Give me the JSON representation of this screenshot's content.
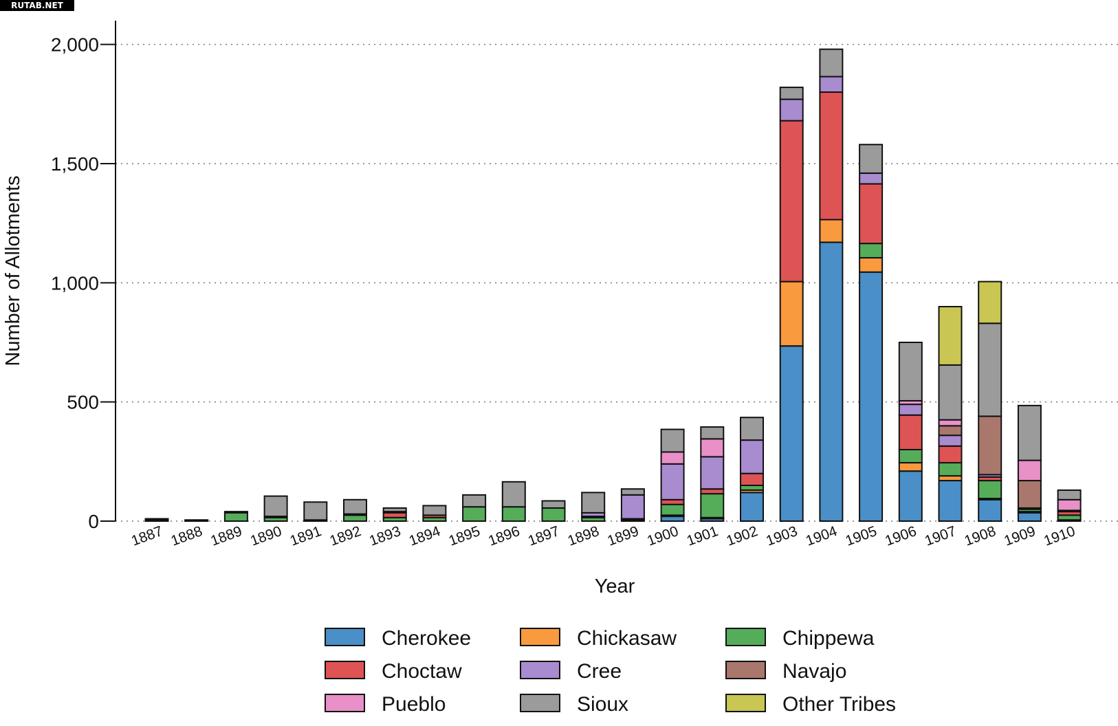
{
  "watermark": "RUTAB.NET",
  "chart_data": {
    "type": "bar",
    "stacked": true,
    "title": "",
    "xlabel": "Year",
    "ylabel": "Number of Allotments",
    "ylim": [
      0,
      2100
    ],
    "yticks": [
      0,
      500,
      1000,
      1500,
      2000
    ],
    "ytick_labels": [
      "0",
      "500",
      "1,000",
      "1,500",
      "2,000"
    ],
    "grid": "horizontal dotted",
    "legend_position": "bottom",
    "categories": [
      "1887",
      "1888",
      "1889",
      "1890",
      "1891",
      "1892",
      "1893",
      "1894",
      "1895",
      "1896",
      "1897",
      "1898",
      "1899",
      "1900",
      "1901",
      "1902",
      "1903",
      "1904",
      "1905",
      "1906",
      "1907",
      "1908",
      "1909",
      "1910"
    ],
    "series": [
      {
        "name": "Cherokee",
        "color": "#4a8fc7",
        "values": [
          0,
          0,
          0,
          0,
          0,
          0,
          0,
          0,
          0,
          0,
          0,
          0,
          0,
          20,
          10,
          120,
          735,
          1170,
          1045,
          210,
          170,
          90,
          35,
          5
        ]
      },
      {
        "name": "Chickasaw",
        "color": "#f99a3e",
        "values": [
          0,
          0,
          0,
          0,
          0,
          0,
          0,
          0,
          0,
          0,
          0,
          0,
          0,
          5,
          5,
          10,
          270,
          95,
          60,
          35,
          20,
          5,
          5,
          0
        ]
      },
      {
        "name": "Chippewa",
        "color": "#55ad5a",
        "values": [
          3,
          2,
          35,
          15,
          0,
          25,
          15,
          15,
          60,
          60,
          55,
          15,
          5,
          45,
          100,
          20,
          0,
          0,
          60,
          55,
          55,
          75,
          10,
          20
        ]
      },
      {
        "name": "Choctaw",
        "color": "#de5454",
        "values": [
          5,
          0,
          0,
          0,
          5,
          5,
          20,
          10,
          0,
          0,
          0,
          5,
          5,
          20,
          20,
          50,
          675,
          535,
          250,
          145,
          70,
          15,
          5,
          15
        ]
      },
      {
        "name": "Cree",
        "color": "#a98bcf",
        "values": [
          0,
          0,
          0,
          0,
          0,
          0,
          0,
          0,
          0,
          0,
          0,
          15,
          100,
          150,
          135,
          140,
          90,
          65,
          45,
          45,
          45,
          10,
          0,
          0
        ]
      },
      {
        "name": "Navajo",
        "color": "#a9776c",
        "values": [
          2,
          0,
          0,
          5,
          0,
          0,
          5,
          0,
          0,
          0,
          0,
          0,
          0,
          0,
          0,
          0,
          0,
          0,
          0,
          0,
          40,
          245,
          115,
          5
        ]
      },
      {
        "name": "Pueblo",
        "color": "#e990c8",
        "values": [
          0,
          0,
          0,
          0,
          0,
          0,
          0,
          0,
          0,
          0,
          0,
          0,
          0,
          50,
          75,
          0,
          0,
          0,
          0,
          15,
          25,
          0,
          85,
          45
        ]
      },
      {
        "name": "Sioux",
        "color": "#9b9b9b",
        "values": [
          0,
          3,
          5,
          85,
          75,
          60,
          15,
          40,
          50,
          105,
          30,
          85,
          25,
          95,
          50,
          95,
          50,
          115,
          120,
          245,
          230,
          390,
          230,
          40
        ]
      },
      {
        "name": "Other Tribes",
        "color": "#c9c653",
        "values": [
          0,
          0,
          0,
          0,
          0,
          0,
          0,
          0,
          0,
          0,
          0,
          0,
          0,
          0,
          0,
          0,
          0,
          0,
          0,
          0,
          245,
          175,
          0,
          0
        ]
      }
    ]
  }
}
